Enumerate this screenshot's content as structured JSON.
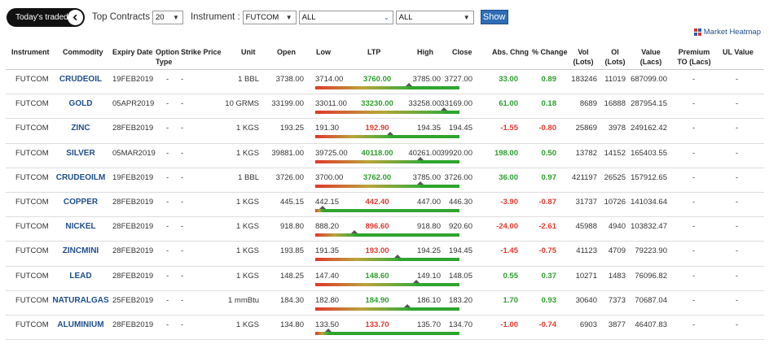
{
  "topbar": {
    "toggle_label": "Today's traded",
    "top_contracts_label": "Top Contracts",
    "top_contracts_value": "20",
    "instrument_label": "Instrument :",
    "instrument_value": "FUTCOM",
    "filter1_value": "ALL",
    "filter2_value": "ALL",
    "show_label": "Show"
  },
  "heatmap_label": "Market Heatmap",
  "columns": {
    "instrument": "Instrument",
    "commodity": "Commodity",
    "expiry": "Expiry Date",
    "option_type": "Option Type",
    "strike": "Strike Price",
    "unit": "Unit",
    "open": "Open",
    "low": "Low",
    "ltp": "LTP",
    "high": "High",
    "close": "Close",
    "abs_chng": "Abs. Chng",
    "pct_change": "% Change",
    "vol": "Vol (Lots)",
    "oi": "OI (Lots)",
    "value": "Value (Lacs)",
    "premium": "Premium TO (Lacs)",
    "ul_value": "UL Value"
  },
  "rows": [
    {
      "instrument": "FUTCOM",
      "commodity": "CRUDEOIL",
      "expiry": "19FEB2019",
      "option": "-",
      "strike": "-",
      "unit": "1 BBL",
      "open": "3738.00",
      "low": "3714.00",
      "ltp": "3760.00",
      "high": "3785.00",
      "close": "3727.00",
      "abs": "33.00",
      "pct": "0.89",
      "vol": "183246",
      "oi": "11019",
      "value": "687099.00",
      "premium": "-",
      "ul": "-",
      "dir": "pos",
      "marker": 0.65
    },
    {
      "instrument": "FUTCOM",
      "commodity": "GOLD",
      "expiry": "05APR2019",
      "option": "-",
      "strike": "-",
      "unit": "10 GRMS",
      "open": "33199.00",
      "low": "33011.00",
      "ltp": "33230.00",
      "high": "33258.00",
      "close": "33169.00",
      "abs": "61.00",
      "pct": "0.18",
      "vol": "8689",
      "oi": "16888",
      "value": "287954.15",
      "premium": "-",
      "ul": "-",
      "dir": "pos",
      "marker": 0.89
    },
    {
      "instrument": "FUTCOM",
      "commodity": "ZINC",
      "expiry": "28FEB2019",
      "option": "-",
      "strike": "-",
      "unit": "1 KGS",
      "open": "193.25",
      "low": "191.30",
      "ltp": "192.90",
      "high": "194.35",
      "close": "194.45",
      "abs": "-1.55",
      "pct": "-0.80",
      "vol": "25869",
      "oi": "3978",
      "value": "249162.42",
      "premium": "-",
      "ul": "-",
      "dir": "neg",
      "marker": 0.52
    },
    {
      "instrument": "FUTCOM",
      "commodity": "SILVER",
      "expiry": "05MAR2019",
      "option": "-",
      "strike": "-",
      "unit": "1 KGS",
      "open": "39881.00",
      "low": "39725.00",
      "ltp": "40118.00",
      "high": "40261.00",
      "close": "39920.00",
      "abs": "198.00",
      "pct": "0.50",
      "vol": "13782",
      "oi": "14152",
      "value": "165403.55",
      "premium": "-",
      "ul": "-",
      "dir": "pos",
      "marker": 0.73
    },
    {
      "instrument": "FUTCOM",
      "commodity": "CRUDEOILM",
      "expiry": "19FEB2019",
      "option": "-",
      "strike": "-",
      "unit": "1 BBL",
      "open": "3726.00",
      "low": "3700.00",
      "ltp": "3762.00",
      "high": "3785.00",
      "close": "3726.00",
      "abs": "36.00",
      "pct": "0.97",
      "vol": "421197",
      "oi": "26525",
      "value": "157912.65",
      "premium": "-",
      "ul": "-",
      "dir": "pos",
      "marker": 0.73
    },
    {
      "instrument": "FUTCOM",
      "commodity": "COPPER",
      "expiry": "28FEB2019",
      "option": "-",
      "strike": "-",
      "unit": "1 KGS",
      "open": "445.15",
      "low": "442.15",
      "ltp": "442.40",
      "high": "447.00",
      "close": "446.30",
      "abs": "-3.90",
      "pct": "-0.87",
      "vol": "31737",
      "oi": "10726",
      "value": "141034.64",
      "premium": "-",
      "ul": "-",
      "dir": "neg",
      "marker": 0.05
    },
    {
      "instrument": "FUTCOM",
      "commodity": "NICKEL",
      "expiry": "28FEB2019",
      "option": "-",
      "strike": "-",
      "unit": "1 KGS",
      "open": "918.80",
      "low": "888.20",
      "ltp": "896.60",
      "high": "918.80",
      "close": "920.60",
      "abs": "-24.00",
      "pct": "-2.61",
      "vol": "45988",
      "oi": "4940",
      "value": "103832.47",
      "premium": "-",
      "ul": "-",
      "dir": "neg",
      "marker": 0.27
    },
    {
      "instrument": "FUTCOM",
      "commodity": "ZINCMINI",
      "expiry": "28FEB2019",
      "option": "-",
      "strike": "-",
      "unit": "1 KGS",
      "open": "193.85",
      "low": "191.35",
      "ltp": "193.00",
      "high": "194.25",
      "close": "194.45",
      "abs": "-1.45",
      "pct": "-0.75",
      "vol": "41123",
      "oi": "4709",
      "value": "79223.90",
      "premium": "-",
      "ul": "-",
      "dir": "neg",
      "marker": 0.57
    },
    {
      "instrument": "FUTCOM",
      "commodity": "LEAD",
      "expiry": "28FEB2019",
      "option": "-",
      "strike": "-",
      "unit": "1 KGS",
      "open": "148.25",
      "low": "147.40",
      "ltp": "148.60",
      "high": "149.10",
      "close": "148.05",
      "abs": "0.55",
      "pct": "0.37",
      "vol": "10271",
      "oi": "1483",
      "value": "76096.82",
      "premium": "-",
      "ul": "-",
      "dir": "pos",
      "marker": 0.7
    },
    {
      "instrument": "FUTCOM",
      "commodity": "NATURALGAS",
      "expiry": "25FEB2019",
      "option": "-",
      "strike": "-",
      "unit": "1 mmBtu",
      "open": "184.30",
      "low": "182.80",
      "ltp": "184.90",
      "high": "186.10",
      "close": "183.20",
      "abs": "1.70",
      "pct": "0.93",
      "vol": "30640",
      "oi": "7373",
      "value": "70687.04",
      "premium": "-",
      "ul": "-",
      "dir": "pos",
      "marker": 0.64
    },
    {
      "instrument": "FUTCOM",
      "commodity": "ALUMINIUM",
      "expiry": "28FEB2019",
      "option": "-",
      "strike": "-",
      "unit": "1 KGS",
      "open": "134.80",
      "low": "133.50",
      "ltp": "133.70",
      "high": "135.70",
      "close": "134.70",
      "abs": "-1.00",
      "pct": "-0.74",
      "vol": "6903",
      "oi": "3877",
      "value": "46407.83",
      "premium": "-",
      "ul": "-",
      "dir": "neg",
      "marker": 0.09
    }
  ],
  "colors": {
    "positive": "#2e9e2e",
    "negative": "#e23b30",
    "link": "#1f4e8c",
    "button": "#2f6db5"
  }
}
